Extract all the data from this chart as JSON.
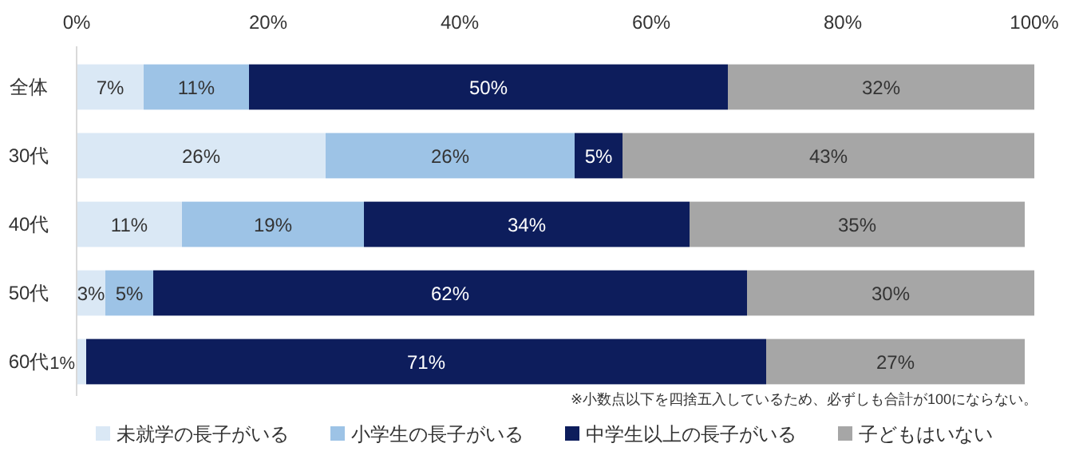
{
  "chart_data": {
    "type": "bar",
    "orientation": "horizontal",
    "stacked": true,
    "categories": [
      "全体",
      "30代",
      "40代",
      "50代",
      "60代"
    ],
    "series": [
      {
        "name": "未就学の長子がいる",
        "color": "#dae8f5",
        "values": [
          7,
          26,
          11,
          3,
          1
        ],
        "value_labels": [
          "7%",
          "26%",
          "11%",
          "3%",
          "1%"
        ]
      },
      {
        "name": "小学生の長子がいる",
        "color": "#9dc3e6",
        "values": [
          11,
          26,
          19,
          5,
          0
        ],
        "value_labels": [
          "11%",
          "26%",
          "19%",
          "5%",
          null
        ]
      },
      {
        "name": "中学生以上の長子がいる",
        "color": "#0d1d5c",
        "values": [
          50,
          5,
          34,
          62,
          71
        ],
        "value_labels": [
          "50%",
          "5%",
          "34%",
          "62%",
          "71%"
        ]
      },
      {
        "name": "子どもはいない",
        "color": "#a6a6a6",
        "values": [
          32,
          43,
          35,
          30,
          27
        ],
        "value_labels": [
          "32%",
          "43%",
          "35%",
          "30%",
          "27%"
        ]
      }
    ],
    "xlim": [
      0,
      100
    ],
    "xticks": [
      {
        "value": 0,
        "label": "0%"
      },
      {
        "value": 20,
        "label": "20%"
      },
      {
        "value": 40,
        "label": "40%"
      },
      {
        "value": 60,
        "label": "60%"
      },
      {
        "value": 80,
        "label": "80%"
      },
      {
        "value": 100,
        "label": "100%"
      }
    ],
    "legend": "bottom",
    "annotations": [
      "※小数点以下を四捨五入しているため、必ずしも合計が100にならない。"
    ]
  }
}
